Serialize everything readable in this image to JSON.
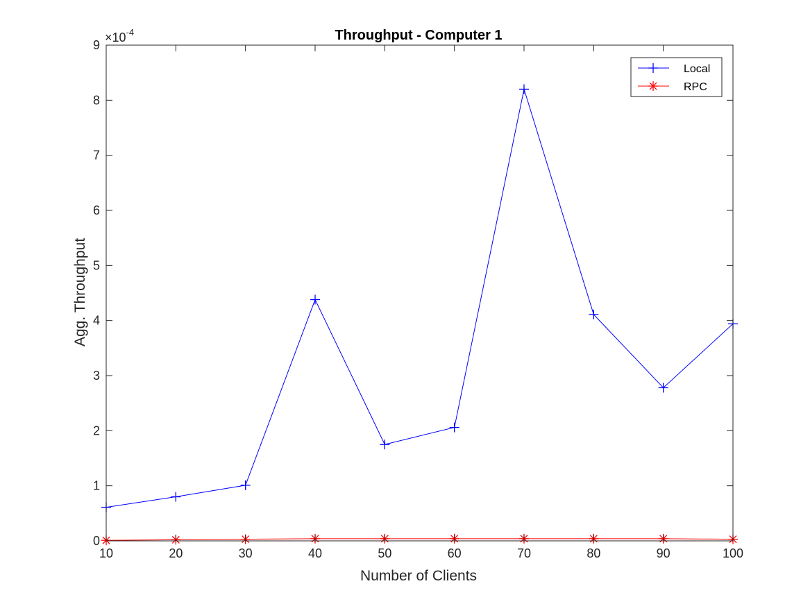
{
  "chart_data": {
    "type": "line",
    "title": "Throughput - Computer 1",
    "xlabel": "Number of Clients",
    "ylabel": "Agg. Throughput",
    "y_exponent_label": "×10",
    "y_exponent_power": "-4",
    "xlim": [
      10,
      100
    ],
    "ylim": [
      0,
      9
    ],
    "x_ticks": [
      "10",
      "20",
      "30",
      "40",
      "50",
      "60",
      "70",
      "80",
      "90",
      "100"
    ],
    "y_ticks": [
      "0",
      "1",
      "2",
      "3",
      "4",
      "5",
      "6",
      "7",
      "8",
      "9"
    ],
    "grid": false,
    "legend_position": "top-right",
    "x": [
      10,
      20,
      30,
      40,
      50,
      60,
      70,
      80,
      90,
      100
    ],
    "series": [
      {
        "name": "Local",
        "color": "#0000ff",
        "marker": "plus",
        "values": [
          0.61,
          0.8,
          1.01,
          4.38,
          1.75,
          2.06,
          8.2,
          4.11,
          2.78,
          3.94
        ]
      },
      {
        "name": "RPC",
        "color": "#ff0000",
        "marker": "asterisk",
        "values": [
          0.01,
          0.02,
          0.03,
          0.04,
          0.04,
          0.04,
          0.04,
          0.04,
          0.04,
          0.03
        ]
      }
    ]
  }
}
